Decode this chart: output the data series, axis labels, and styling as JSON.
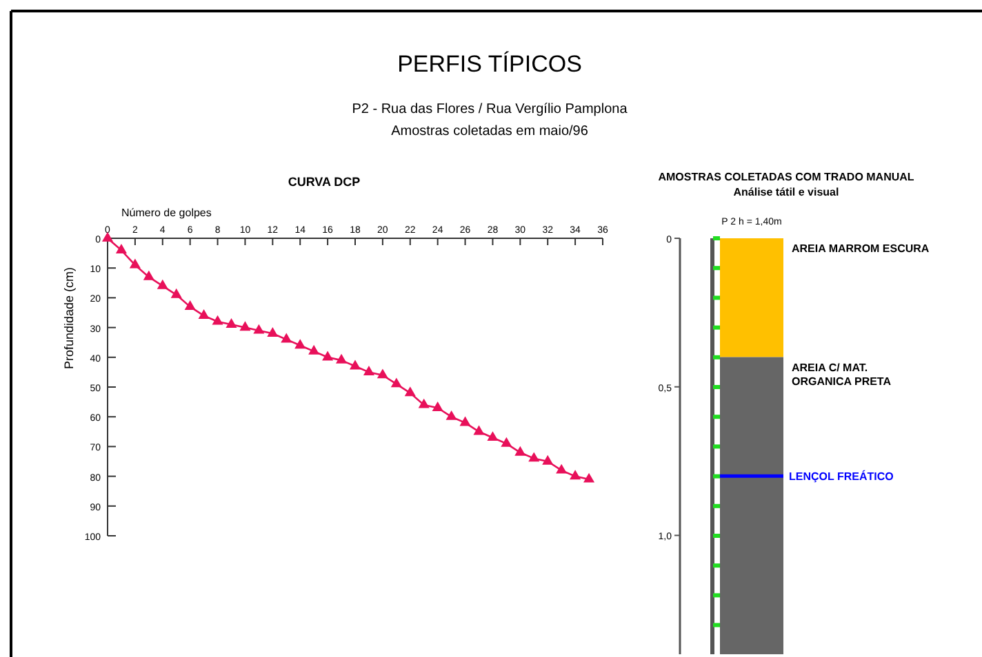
{
  "chart_data": [
    {
      "type": "other",
      "title": "PERFIS TÍPICOS",
      "subtitle": "P2 - Rua das Flores / Rua Vergílio Pamplona",
      "annotations": [
        "Amostras coletadas em maio/96"
      ]
    },
    {
      "type": "line",
      "title": "CURVA DCP",
      "xlabel": "Número de golpes",
      "ylabel": "Profundidade (cm)",
      "x": [
        0,
        1,
        2,
        3,
        4,
        5,
        6,
        7,
        8,
        9,
        10,
        11,
        12,
        13,
        14,
        15,
        16,
        17,
        18,
        19,
        20,
        21,
        22,
        23,
        24,
        25,
        26,
        27,
        28,
        29,
        30,
        31,
        32,
        33,
        34,
        35
      ],
      "series": [
        {
          "color": "#e8105a",
          "values": [
            0,
            4,
            9,
            13,
            16,
            19,
            23,
            26,
            28,
            29,
            30,
            31,
            32,
            34,
            36,
            38,
            40,
            41,
            43,
            45,
            46,
            49,
            52,
            56,
            57,
            60,
            62,
            65,
            67,
            69,
            72,
            74,
            75,
            78,
            80,
            81
          ]
        }
      ],
      "xlim": [
        0,
        36
      ],
      "xticks": [
        0,
        2,
        4,
        6,
        8,
        10,
        12,
        14,
        16,
        18,
        20,
        22,
        24,
        26,
        28,
        30,
        32,
        34,
        36
      ],
      "ylim": [
        100,
        0
      ],
      "yticks": [
        0,
        10,
        20,
        30,
        40,
        50,
        60,
        70,
        80,
        90,
        100
      ],
      "marker": "triangle",
      "grid": false
    },
    {
      "type": "bar",
      "stacked": true,
      "title": "AMOSTRAS COLETADAS COM TRADO MANUAL",
      "subtitle": "Análise tátil e visual",
      "categories": [
        null
      ],
      "series": [
        {
          "name": "AREIA MARROM ESCURA",
          "color": "#ffc000",
          "values": [
            0.4
          ]
        },
        {
          "name": "AREIA C/ MAT. ORGANICA PRETA",
          "color": "#666666",
          "values": [
            1.0
          ]
        }
      ],
      "ylim": [
        1.4,
        0
      ],
      "yticks": [
        {
          "value": 0,
          "label": "0"
        },
        {
          "value": 0.5,
          "label": "0,5"
        },
        {
          "value": 1,
          "label": "1,0"
        }
      ],
      "ref_lines": [
        {
          "axis": "y",
          "value": 0.8,
          "label": "LENÇOL FREÁTICO",
          "color": "#0000ff"
        }
      ],
      "annotations": [
        "P 2  h = 1,40m"
      ]
    }
  ]
}
